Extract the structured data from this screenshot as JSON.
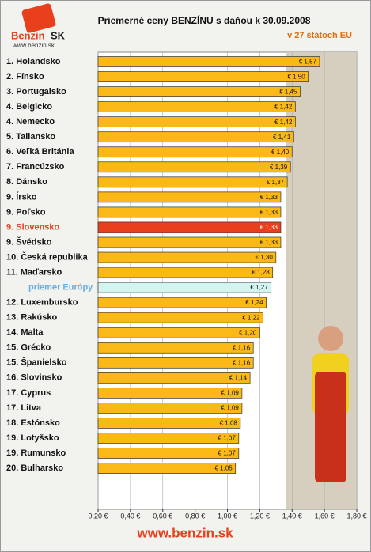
{
  "chart_data": {
    "type": "hbar",
    "title": "Priemerné ceny BENZÍNU s daňou k 30.09.2008",
    "subtitle": "v 27 štátoch EU",
    "logo_name": "Benzin",
    "logo_suffix": "SK",
    "logo_url": "www.benzin.sk",
    "footer": "www.benzin.sk",
    "categories": [
      "1. Holandsko",
      "2. Fínsko",
      "3. Portugalsko",
      "4. Belgicko",
      "4. Nemecko",
      "5. Taliansko",
      "6. Veľká Británia",
      "7. Francúzsko",
      "8. Dánsko",
      "9. Írsko",
      "9. Poľsko",
      "9. Slovensko",
      "9. Švédsko",
      "10. Česká republika",
      "11. Maďarsko",
      "priemer Európy",
      "12. Luxembursko",
      "13. Rakúsko",
      "14. Malta",
      "15. Grécko",
      "15. Španielsko",
      "16. Slovinsko",
      "17. Cyprus",
      "17. Litva",
      "18. Estónsko",
      "19. Lotyšsko",
      "19. Rumunsko",
      "20. Bulharsko"
    ],
    "values": [
      1.57,
      1.5,
      1.45,
      1.42,
      1.42,
      1.41,
      1.4,
      1.39,
      1.37,
      1.33,
      1.33,
      1.33,
      1.33,
      1.3,
      1.28,
      1.27,
      1.24,
      1.22,
      1.2,
      1.16,
      1.16,
      1.14,
      1.09,
      1.09,
      1.08,
      1.07,
      1.07,
      1.05
    ],
    "value_labels": [
      "€ 1,57",
      "€ 1,50",
      "€ 1,45",
      "€ 1,42",
      "€ 1,42",
      "€ 1,41",
      "€ 1,40",
      "€ 1,39",
      "€ 1,37",
      "€ 1,33",
      "€ 1,33",
      "€ 1,33",
      "€ 1,33",
      "€ 1,30",
      "€ 1,28",
      "€ 1,27",
      "€ 1,24",
      "€ 1,22",
      "€ 1,20",
      "€ 1,16",
      "€ 1,16",
      "€ 1,14",
      "€ 1,09",
      "€ 1,09",
      "€ 1,08",
      "€ 1,07",
      "€ 1,07",
      "€ 1,05"
    ],
    "color": "#fbb917",
    "highlight": {
      "9. Slovensko": "#e8401c",
      "priemer Európy": "#d4f4f0"
    },
    "label_highlight": {
      "9. Slovensko": "#e8401c",
      "priemer Európy": "#6aaee0"
    },
    "xlim": [
      0.2,
      1.8
    ],
    "xticks": [
      {
        "value": 0.2,
        "label": "0,20 €"
      },
      {
        "value": 0.4,
        "label": "0,40 €"
      },
      {
        "value": 0.6,
        "label": "0,60 €"
      },
      {
        "value": 0.8,
        "label": "0,80 €"
      },
      {
        "value": 1.0,
        "label": "1,00 €"
      },
      {
        "value": 1.2,
        "label": "1,20 €"
      },
      {
        "value": 1.4,
        "label": "1,40 €"
      },
      {
        "value": 1.6,
        "label": "1,60 €"
      },
      {
        "value": 1.8,
        "label": "1,80 €"
      }
    ],
    "grid": true
  }
}
